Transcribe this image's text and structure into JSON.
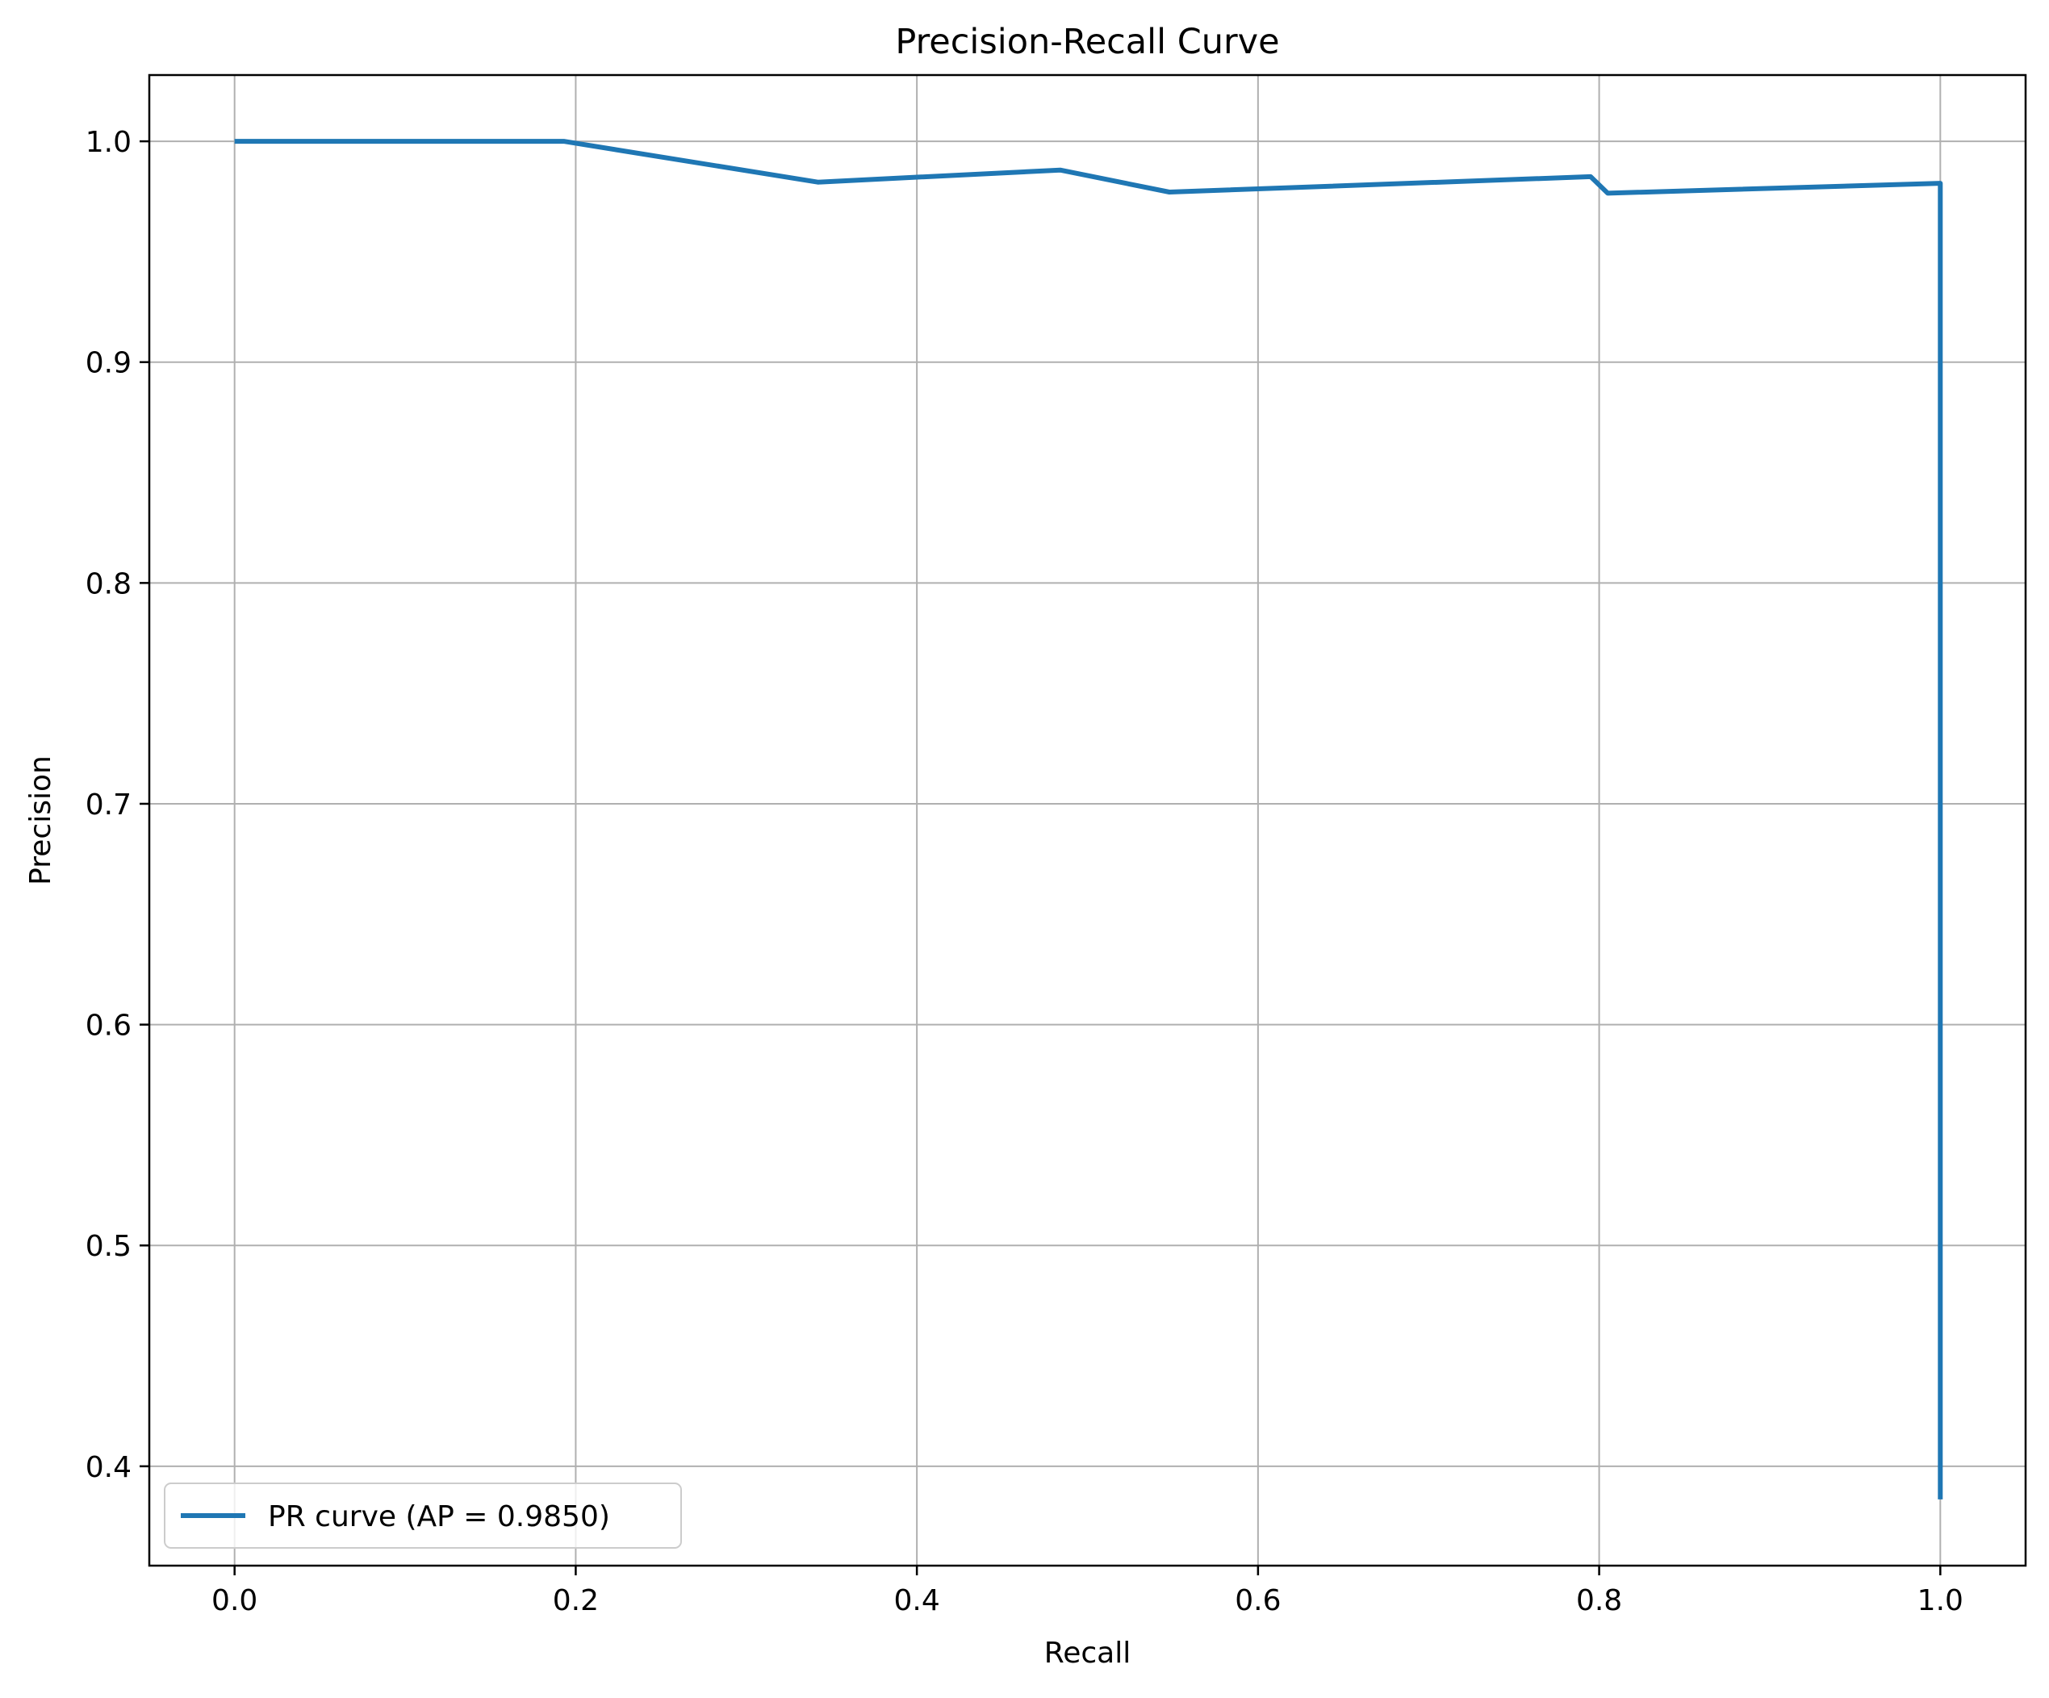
{
  "chart_data": {
    "type": "line",
    "title": "Precision-Recall Curve",
    "xlabel": "Recall",
    "ylabel": "Precision",
    "xlim": [
      -0.05,
      1.05
    ],
    "ylim": [
      0.355,
      1.03
    ],
    "xticks": [
      0.0,
      0.2,
      0.4,
      0.6,
      0.8,
      1.0
    ],
    "xtick_labels": [
      "0.0",
      "0.2",
      "0.4",
      "0.6",
      "0.8",
      "1.0"
    ],
    "yticks": [
      0.4,
      0.5,
      0.6,
      0.7,
      0.8,
      0.9,
      1.0
    ],
    "ytick_labels": [
      "0.4",
      "0.5",
      "0.6",
      "0.7",
      "0.8",
      "0.9",
      "1.0"
    ],
    "grid": true,
    "legend_position": "lower-left",
    "series": [
      {
        "name": "PR curve (AP = 0.9850)",
        "color": "#1f77b4",
        "x": [
          0.0,
          0.193,
          0.342,
          0.484,
          0.548,
          0.795,
          0.805,
          1.0,
          1.0
        ],
        "y": [
          1.0,
          1.0,
          0.9815,
          0.987,
          0.977,
          0.984,
          0.9765,
          0.981,
          0.385
        ]
      }
    ]
  }
}
